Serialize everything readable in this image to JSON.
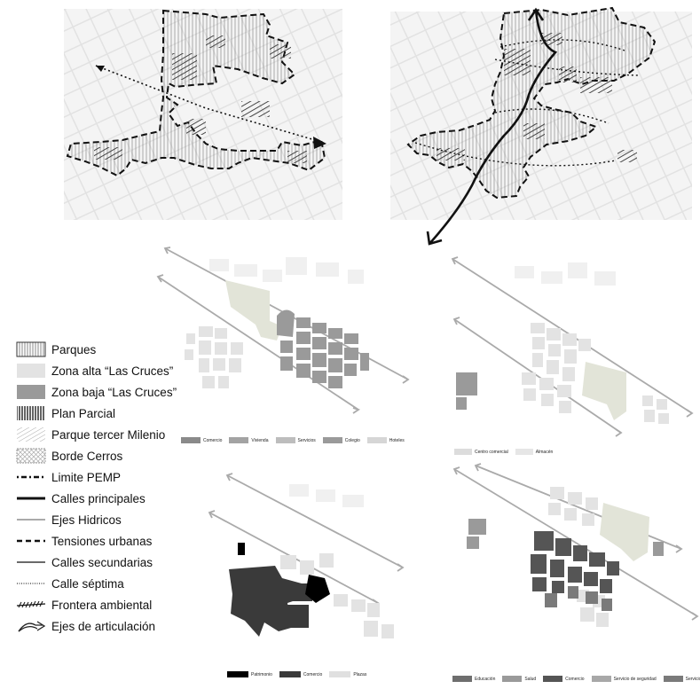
{
  "legend": {
    "items": [
      {
        "label": "Parques",
        "icon": "vertical-stripes-box-icon"
      },
      {
        "label": "Zona alta “Las Cruces”",
        "icon": "light-gray-fill-icon"
      },
      {
        "label": "Zona baja “Las Cruces”",
        "icon": "dark-gray-fill-icon"
      },
      {
        "label": "Plan Parcial",
        "icon": "dense-vertical-hatch-icon"
      },
      {
        "label": "Parque tercer Milenio",
        "icon": "light-diagonal-hatch-icon"
      },
      {
        "label": "Borde Cerros",
        "icon": "crosshatch-box-icon"
      },
      {
        "label": "Limite PEMP",
        "icon": "dotted-dashed-line-icon"
      },
      {
        "label": "Calles principales",
        "icon": "thick-solid-line-icon"
      },
      {
        "label": "Ejes Hidricos",
        "icon": "gray-line-icon"
      },
      {
        "label": "Tensiones urbanas",
        "icon": "dashed-line-icon"
      },
      {
        "label": "Calles secundarias",
        "icon": "dark-gray-line-icon"
      },
      {
        "label": "Calle séptima",
        "icon": "fine-dotted-line-icon"
      },
      {
        "label": "Frontera ambiental",
        "icon": "hatched-line-icon"
      },
      {
        "label": "Ejes de articulación",
        "icon": "curved-arrow-icon"
      }
    ]
  },
  "map_a_legend": [
    {
      "label": "Comercio",
      "color": "#8a8a8a"
    },
    {
      "label": "Vivienda",
      "color": "#a3a3a3"
    },
    {
      "label": "Servicios",
      "color": "#bdbdbd"
    },
    {
      "label": "Colegio",
      "color": "#9a9a9a"
    },
    {
      "label": "Hoteles",
      "color": "#d6d6d6"
    }
  ],
  "map_b_legend": [
    {
      "label": "Centro comercial",
      "color": "#dcdcdc"
    },
    {
      "label": "Almacén",
      "color": "#e6e6e6"
    }
  ],
  "map_c_legend": [
    {
      "label": "Patrimonio",
      "color": "#000000"
    },
    {
      "label": "Comercio",
      "color": "#3a3a3a"
    },
    {
      "label": "Plazas",
      "color": "#e0e0e0"
    }
  ],
  "map_d_legend": [
    {
      "label": "Educación",
      "color": "#6e6e6e"
    },
    {
      "label": "Salud",
      "color": "#9a9a9a"
    },
    {
      "label": "Comercio",
      "color": "#555555"
    },
    {
      "label": "Servicio de seguridad",
      "color": "#a8a8a8"
    },
    {
      "label": "Servicio",
      "color": "#7a7a7a"
    }
  ],
  "colors": {
    "light_zone": "#e3e3e3",
    "dark_zone": "#9a9a9a",
    "park_green": "#e2e4d8",
    "heritage": "#000000",
    "commerce_dark": "#3a3a3a"
  }
}
